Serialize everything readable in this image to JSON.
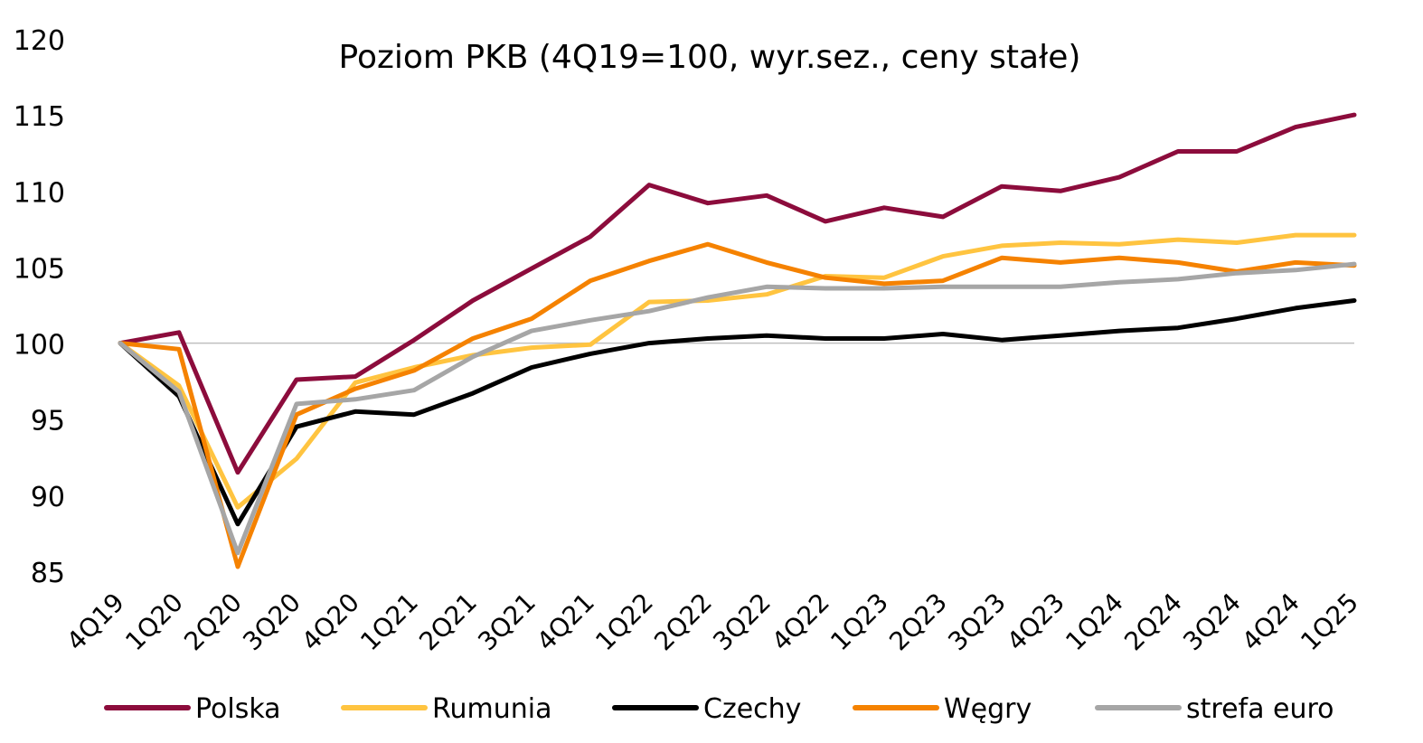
{
  "chart_data": {
    "type": "line",
    "title": "Poziom PKB (4Q19=100, wyr.sez., ceny stałe)",
    "xlabel": "",
    "ylabel": "",
    "ylim": [
      85,
      120
    ],
    "yticks": [
      85,
      90,
      95,
      100,
      105,
      110,
      115,
      120
    ],
    "categories": [
      "4Q19",
      "1Q20",
      "2Q20",
      "3Q20",
      "4Q20",
      "1Q21",
      "2Q21",
      "3Q21",
      "4Q21",
      "1Q22",
      "2Q22",
      "3Q22",
      "4Q22",
      "1Q23",
      "2Q23",
      "3Q23",
      "4Q23",
      "1Q24",
      "2Q24",
      "3Q24",
      "4Q24",
      "1Q25"
    ],
    "reference_line": 100,
    "grid": false,
    "legend_position": "bottom",
    "series": [
      {
        "name": "Polska",
        "color": "#8C0C3C",
        "values": [
          100,
          100.7,
          91.5,
          97.6,
          97.8,
          100.2,
          102.8,
          104.9,
          107.0,
          110.4,
          109.2,
          109.7,
          108.0,
          108.9,
          108.3,
          110.3,
          110.0,
          110.9,
          112.6,
          112.6,
          114.2,
          115.0
        ]
      },
      {
        "name": "Rumunia",
        "color": "#FFC440",
        "values": [
          100,
          97.2,
          89.2,
          92.4,
          97.4,
          98.4,
          99.2,
          99.7,
          99.9,
          102.7,
          102.8,
          103.2,
          104.4,
          104.3,
          105.7,
          106.4,
          106.6,
          106.5,
          106.8,
          106.6,
          107.1,
          107.1
        ]
      },
      {
        "name": "Czechy",
        "color": "#000000",
        "values": [
          100,
          96.5,
          88.1,
          94.5,
          95.5,
          95.3,
          96.7,
          98.4,
          99.3,
          100.0,
          100.3,
          100.5,
          100.3,
          100.3,
          100.6,
          100.2,
          100.5,
          100.8,
          101.0,
          101.6,
          102.3,
          102.8
        ]
      },
      {
        "name": "Węgry",
        "color": "#F58200",
        "values": [
          100,
          99.6,
          85.3,
          95.3,
          97.0,
          98.2,
          100.3,
          101.6,
          104.1,
          105.4,
          106.5,
          105.3,
          104.3,
          103.9,
          104.1,
          105.6,
          105.3,
          105.6,
          105.3,
          104.7,
          105.3,
          105.1
        ]
      },
      {
        "name": "strefa euro",
        "color": "#A6A6A6",
        "values": [
          100,
          96.8,
          86.2,
          96.0,
          96.3,
          96.9,
          99.1,
          100.8,
          101.5,
          102.1,
          103.0,
          103.7,
          103.6,
          103.6,
          103.7,
          103.7,
          103.7,
          104.0,
          104.2,
          104.6,
          104.8,
          105.2
        ]
      }
    ]
  }
}
